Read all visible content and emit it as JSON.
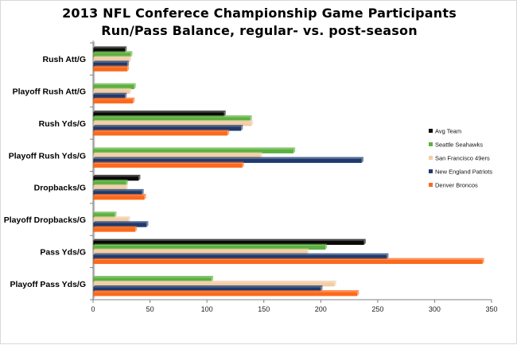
{
  "chart_data": {
    "type": "bar",
    "orientation": "horizontal",
    "title": "2013 NFL Conferece Championship Game Participants",
    "subtitle": "Run/Pass Balance, regular- vs. post-season",
    "categories": [
      "Rush Att/G",
      "Playoff Rush Att/G",
      "Rush Yds/G",
      "Playoff Rush Yds/G",
      "Dropbacks/G",
      "Playoff Dropbacks/G",
      "Pass Yds/G",
      "Playoff Pass Yds/G"
    ],
    "series": [
      {
        "name": "Avg Team",
        "color": "#0a0a0a",
        "values": [
          28,
          null,
          115,
          null,
          40,
          null,
          238,
          null
        ]
      },
      {
        "name": "Seattle Seahawks",
        "color": "#5bb13f",
        "values": [
          33,
          36,
          138,
          176,
          29,
          19,
          204,
          104
        ]
      },
      {
        "name": "San Francisco 49ers",
        "color": "#f2cda6",
        "values": [
          32,
          32,
          139,
          147,
          29,
          31,
          188,
          212
        ]
      },
      {
        "name": "New England Patriots",
        "color": "#1e3a6e",
        "values": [
          30,
          28,
          130,
          236,
          43,
          47,
          258,
          200
        ]
      },
      {
        "name": "Denver Broncos",
        "color": "#fb6a1c",
        "values": [
          30,
          35,
          118,
          131,
          45,
          37,
          342,
          232
        ]
      }
    ],
    "xlim": [
      0,
      350
    ],
    "xticks": [
      0,
      50,
      100,
      150,
      200,
      250,
      300,
      350
    ],
    "xlabel": "",
    "ylabel": "",
    "grid": false,
    "legend": "right"
  }
}
